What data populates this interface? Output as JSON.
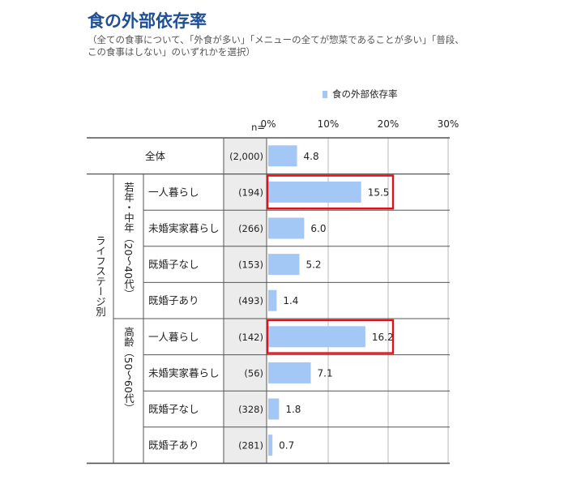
{
  "title": "食の外部依存率",
  "subtitle": "（全ての食事について、「外食が多い」「メニューの全てが惣菜であることが多い」「普段、この食事はしない」のいずれかを選択）",
  "legend": "食の外部依存率",
  "colors": {
    "bar": "#a4c8f5",
    "highlight": "#e0101c",
    "line": "#555555",
    "grid": "#b8b8b8",
    "n_column": "#ececec"
  },
  "n_header": "n=",
  "outer_group": "ライフステージ別",
  "groups": [
    "若年・中年（20～40代）",
    "高齢（50～60代）"
  ],
  "chart_data": {
    "type": "bar",
    "orientation": "horizontal",
    "x_ticks": [
      "0%",
      "10%",
      "20%",
      "30%"
    ],
    "xlim": [
      0,
      30
    ],
    "grid": true,
    "legend_position": "top-right",
    "rows": [
      {
        "label": "全体",
        "n": "(2,000)",
        "value": 4.8,
        "value_label": "4.8",
        "group": null,
        "highlight": false
      },
      {
        "label": "一人暮らし",
        "n": "(194)",
        "value": 15.5,
        "value_label": "15.5",
        "group": 0,
        "highlight": true
      },
      {
        "label": "未婚実家暮らし",
        "n": "(266)",
        "value": 6.0,
        "value_label": "6.0",
        "group": 0,
        "highlight": false
      },
      {
        "label": "既婚子なし",
        "n": "(153)",
        "value": 5.2,
        "value_label": "5.2",
        "group": 0,
        "highlight": false
      },
      {
        "label": "既婚子あり",
        "n": "(493)",
        "value": 1.4,
        "value_label": "1.4",
        "group": 0,
        "highlight": false
      },
      {
        "label": "一人暮らし",
        "n": "(142)",
        "value": 16.2,
        "value_label": "16.2",
        "group": 1,
        "highlight": true
      },
      {
        "label": "未婚実家暮らし",
        "n": "(56)",
        "value": 7.1,
        "value_label": "7.1",
        "group": 1,
        "highlight": false
      },
      {
        "label": "既婚子なし",
        "n": "(328)",
        "value": 1.8,
        "value_label": "1.8",
        "group": 1,
        "highlight": false
      },
      {
        "label": "既婚子あり",
        "n": "(281)",
        "value": 0.7,
        "value_label": "0.7",
        "group": 1,
        "highlight": false
      }
    ]
  }
}
